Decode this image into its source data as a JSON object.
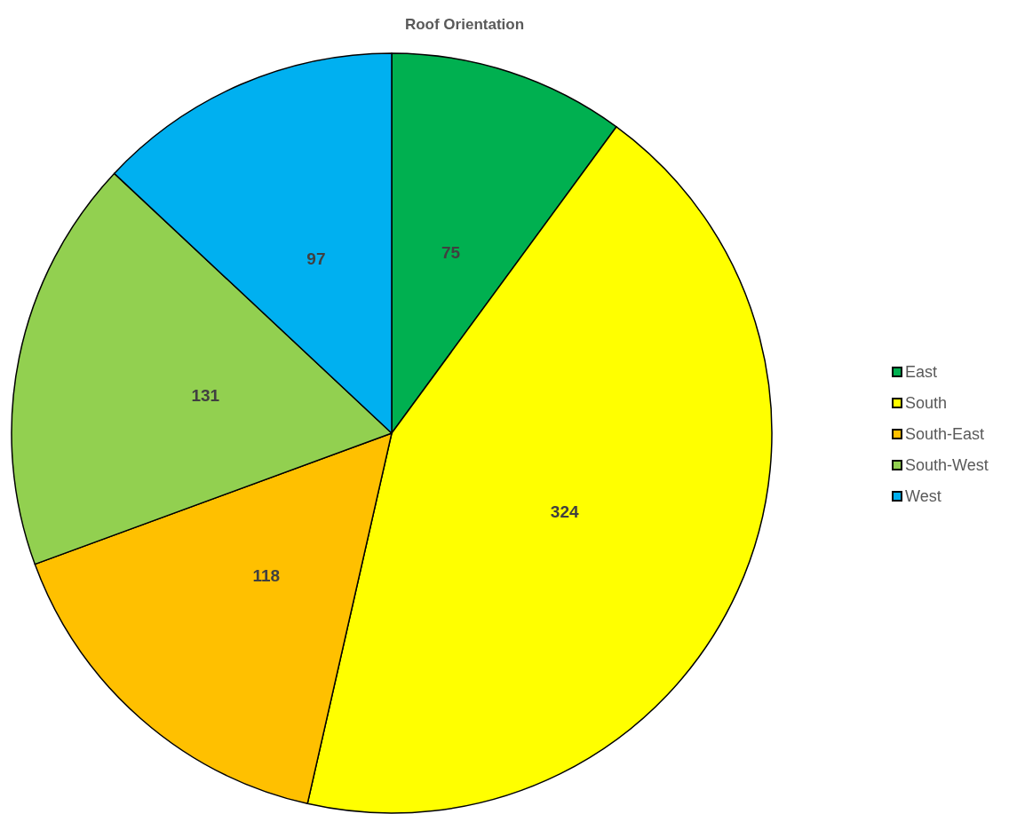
{
  "chart_data": {
    "type": "pie",
    "title": "Roof Orientation",
    "categories": [
      "East",
      "South",
      "South-East",
      "South-West",
      "West"
    ],
    "values": [
      75,
      324,
      118,
      131,
      97
    ],
    "colors": [
      "#00b050",
      "#ffff00",
      "#ffc000",
      "#92d050",
      "#00b0f0"
    ],
    "data_labels": true,
    "legend": "right"
  }
}
